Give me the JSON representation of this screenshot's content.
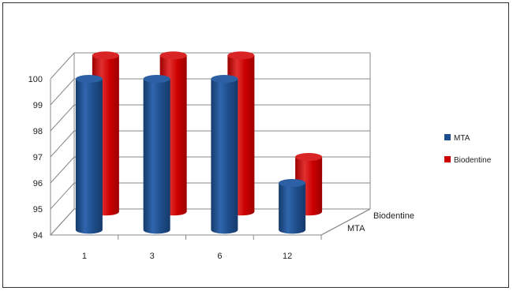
{
  "chart_data": {
    "type": "bar",
    "style": "3d-cylinder",
    "categories": [
      "1",
      "3",
      "6",
      "12"
    ],
    "series": [
      {
        "name": "MTA",
        "color": "#1f4e8c",
        "values": [
          99.8,
          99.8,
          99.8,
          95.8
        ]
      },
      {
        "name": "Biodentine",
        "color": "#cc0000",
        "values": [
          100.0,
          100.0,
          100.0,
          96.1
        ]
      }
    ],
    "legend": {
      "position": "right",
      "items": [
        "MTA",
        "Biodentine"
      ]
    },
    "depth_labels": [
      "Biodentine",
      "MTA"
    ],
    "yticks": [
      "94",
      "95",
      "96",
      "97",
      "98",
      "99",
      "100"
    ],
    "ylim": [
      94,
      100
    ],
    "grid": true
  }
}
